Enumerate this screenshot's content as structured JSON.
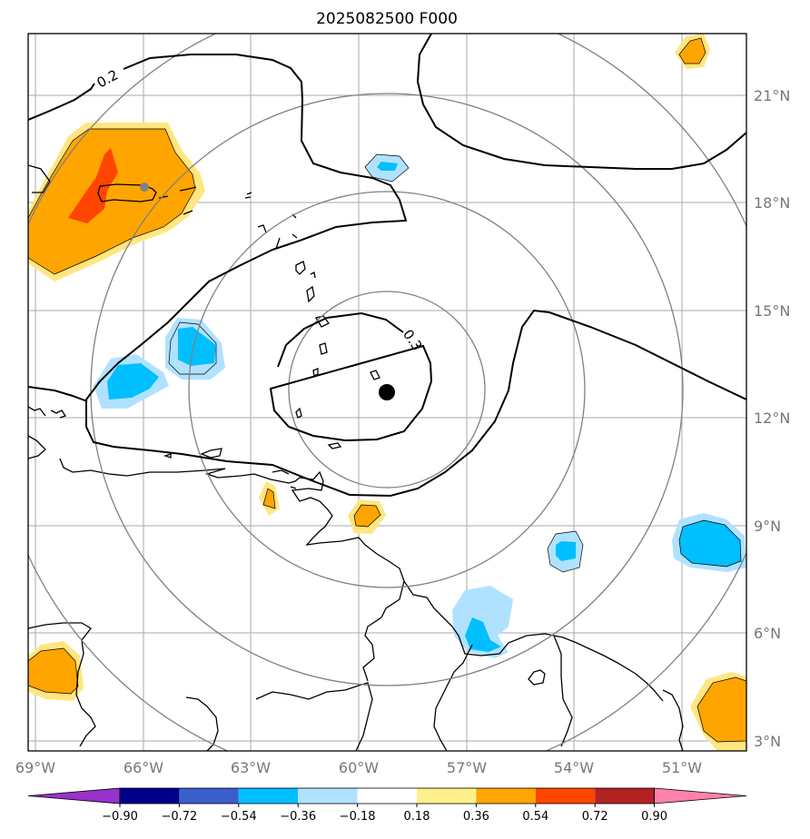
{
  "title": "2025082500 F000",
  "lon_ticks": [
    "69°W",
    "66°W",
    "63°W",
    "60°W",
    "57°W",
    "54°W",
    "51°W"
  ],
  "lat_ticks": [
    "21°N",
    "18°N",
    "15°N",
    "12°N",
    "9°N",
    "6°N",
    "3°N"
  ],
  "contour_labels": [
    "0.2",
    "0.3"
  ],
  "colorbar": {
    "ticks": [
      "−0.90",
      "−0.72",
      "−0.54",
      "−0.36",
      "−0.18",
      "0.18",
      "0.36",
      "0.54",
      "0.72",
      "0.90"
    ],
    "colors": [
      "#9932cc",
      "#00008b",
      "#3a5fcd",
      "#00bfff",
      "#b0e2ff",
      "#ffffff",
      "#fff08a",
      "#ffa500",
      "#ff4500",
      "#b22222",
      "#ff82ab"
    ]
  },
  "colors": {
    "orange": "#ffa500",
    "red_orange": "#ff4500",
    "yellow": "#ffe680",
    "light_blue": "#b0e2ff",
    "blue": "#00bfff",
    "grid": "#aaaaaa",
    "ring": "#808080"
  },
  "center_marker": "storm-center"
}
